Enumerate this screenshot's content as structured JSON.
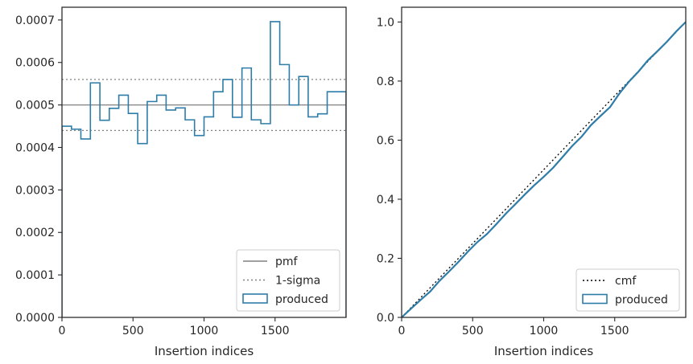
{
  "chart_data": [
    {
      "type": "line",
      "title": "",
      "xlabel": "Insertion indices",
      "ylabel": "",
      "xlim": [
        0,
        2000
      ],
      "ylim": [
        0,
        0.00073
      ],
      "xticks": [
        0,
        500,
        1000,
        1500
      ],
      "xtick_labels": [
        "0",
        "500",
        "1000",
        "1500"
      ],
      "yticks": [
        0,
        0.0001,
        0.0002,
        0.0003,
        0.0004,
        0.0005,
        0.0006,
        0.0007
      ],
      "ytick_labels": [
        "0.0000",
        "0.0001",
        "0.0002",
        "0.0003",
        "0.0004",
        "0.0005",
        "0.0006",
        "0.0007"
      ],
      "grid": false,
      "legend_position": "lower-right",
      "series": [
        {
          "name": "pmf",
          "kind": "hline",
          "value": 0.0005,
          "color": "#808080",
          "style": "solid"
        },
        {
          "name": "1-sigma",
          "kind": "hlines",
          "values": [
            0.00044,
            0.00056
          ],
          "color": "#808080",
          "style": "dotted"
        },
        {
          "name": "produced",
          "kind": "step-histogram",
          "color": "#2e7ca8",
          "bin_edges": [
            0,
            67,
            133,
            200,
            267,
            333,
            400,
            467,
            533,
            600,
            667,
            733,
            800,
            867,
            933,
            1000,
            1067,
            1133,
            1200,
            1267,
            1333,
            1400,
            1467,
            1533,
            1600,
            1667,
            1733,
            1800,
            1867,
            1933,
            2000
          ],
          "values": [
            0.00045,
            0.000443,
            0.00042,
            0.000552,
            0.000464,
            0.000492,
            0.000523,
            0.00048,
            0.000409,
            0.000508,
            0.000523,
            0.000488,
            0.000493,
            0.000465,
            0.000428,
            0.000472,
            0.000531,
            0.00056,
            0.000471,
            0.000587,
            0.000465,
            0.000456,
            0.000696,
            0.000595,
            0.0005,
            0.000567,
            0.000472,
            0.000479,
            0.000531,
            0.000531
          ]
        }
      ]
    },
    {
      "type": "line",
      "title": "",
      "xlabel": "Insertion indices",
      "ylabel": "",
      "xlim": [
        0,
        2000
      ],
      "ylim": [
        0,
        1.05
      ],
      "xticks": [
        0,
        500,
        1000,
        1500
      ],
      "xtick_labels": [
        "0",
        "500",
        "1000",
        "1500"
      ],
      "yticks": [
        0,
        0.2,
        0.4,
        0.6,
        0.8,
        1.0
      ],
      "ytick_labels": [
        "0.0",
        "0.2",
        "0.4",
        "0.6",
        "0.8",
        "1.0"
      ],
      "grid": false,
      "legend_position": "lower-right",
      "series": [
        {
          "name": "cmf",
          "kind": "line",
          "x": [
            0,
            2000
          ],
          "y": [
            0,
            1.0
          ],
          "color": "#000000",
          "style": "dotted"
        },
        {
          "name": "produced",
          "kind": "line",
          "color": "#2e7ca8",
          "style": "solid",
          "x": [
            0,
            67,
            133,
            200,
            267,
            333,
            400,
            467,
            533,
            600,
            667,
            733,
            800,
            867,
            933,
            1000,
            1067,
            1133,
            1200,
            1267,
            1333,
            1400,
            1467,
            1533,
            1600,
            1667,
            1733,
            1800,
            1867,
            1933,
            2000
          ],
          "y": [
            0,
            0.03,
            0.059,
            0.087,
            0.124,
            0.155,
            0.188,
            0.223,
            0.255,
            0.282,
            0.316,
            0.351,
            0.383,
            0.416,
            0.447,
            0.476,
            0.507,
            0.543,
            0.58,
            0.612,
            0.651,
            0.682,
            0.712,
            0.758,
            0.798,
            0.832,
            0.87,
            0.901,
            0.933,
            0.968,
            1.0
          ]
        }
      ]
    }
  ]
}
